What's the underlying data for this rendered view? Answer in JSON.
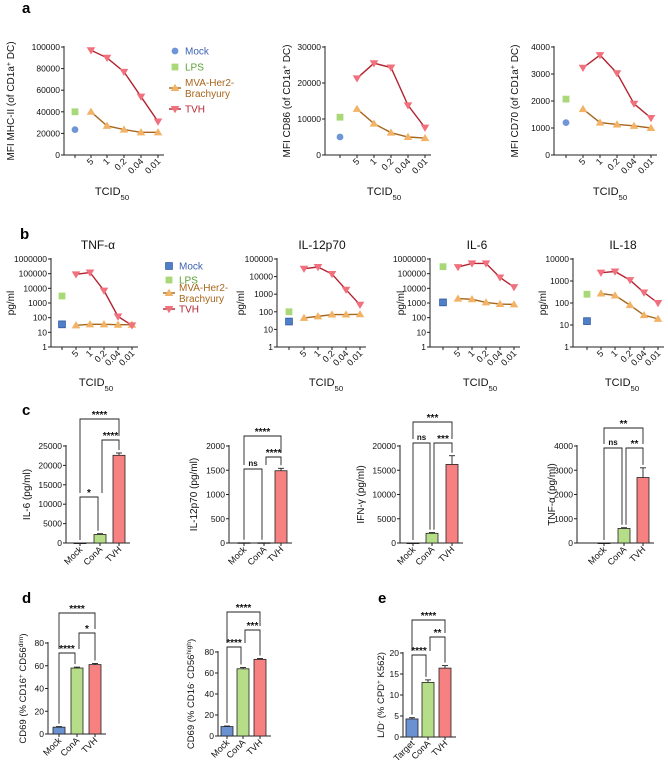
{
  "figure": {
    "panel_labels": {
      "a": "a",
      "b": "b",
      "c": "c",
      "d": "d",
      "e": "e"
    }
  },
  "colors": {
    "mock": "#6f95d6",
    "lps": "#a9d878",
    "mva_fill": "#f2b366",
    "mva_line": "#a8661c",
    "tvh_fill": "#f0707e",
    "tvh_line": "#b3222f",
    "bar_mock": "#6a92d2",
    "bar_cona": "#b6de88",
    "bar_tvh": "#f78080"
  },
  "legend_a": [
    {
      "label": [
        "Mock"
      ],
      "marker": "circle",
      "color": "#6f95d6",
      "text_color": "#3b62b0"
    },
    {
      "label": [
        "LPS"
      ],
      "marker": "square",
      "color": "#a9d878",
      "text_color": "#5aa032"
    },
    {
      "label": [
        "MVA-Her2-",
        "Brachyury"
      ],
      "marker": "tri-up",
      "color": "#f2b366",
      "line": "#a8661c",
      "text_color": "#a8661c"
    },
    {
      "label": [
        "TVH"
      ],
      "marker": "tri-down",
      "color": "#f0707e",
      "line": "#b3222f",
      "text_color": "#b3222f"
    }
  ],
  "legend_b": [
    {
      "label": [
        "Mock"
      ],
      "marker": "square",
      "color": "#4f7fc8",
      "text_color": "#3b62b0"
    },
    {
      "label": [
        "LPS"
      ],
      "marker": "square",
      "color": "#a9d878",
      "text_color": "#5aa032"
    },
    {
      "label": [
        "MVA-Her2-",
        "Brachyury"
      ],
      "marker": "tri-up",
      "color": "#f2b366",
      "line": "#a8661c",
      "text_color": "#a8661c"
    },
    {
      "label": [
        "TVH"
      ],
      "marker": "tri-down",
      "color": "#f0707e",
      "line": "#b3222f",
      "text_color": "#b3222f"
    }
  ],
  "chart_data": [
    {
      "id": "a1",
      "panel": "a",
      "type": "line",
      "scale": "linear",
      "title": "",
      "ylabel": [
        {
          "t": "MFI MHC-II (of CD1a"
        },
        {
          "t": "+",
          "sup": true
        },
        {
          "t": " DC)"
        }
      ],
      "xlabel": [
        {
          "t": "TCID"
        },
        {
          "t": "50",
          "sub": true
        }
      ],
      "x_ticks": [
        "5",
        "1",
        "0.2",
        "0.04",
        "0.01"
      ],
      "ylim": [
        0,
        100000
      ],
      "yticks": [
        "0",
        "20000",
        "40000",
        "60000",
        "80000",
        "100000"
      ],
      "controls": {
        "Mock": 23500,
        "LPS": 40000
      },
      "series": [
        {
          "name": "MVA-Her2-Brachyury",
          "values": [
            40000,
            27000,
            23500,
            21000,
            21000
          ]
        },
        {
          "name": "TVH",
          "values": [
            97000,
            90000,
            77000,
            54000,
            31000
          ]
        }
      ]
    },
    {
      "id": "a2",
      "panel": "a",
      "type": "line",
      "scale": "linear",
      "title": "",
      "ylabel": [
        {
          "t": "MFI CD86 (of CD1a"
        },
        {
          "t": "+",
          "sup": true
        },
        {
          "t": " DC)"
        }
      ],
      "xlabel": [
        {
          "t": "TCID"
        },
        {
          "t": "50",
          "sub": true
        }
      ],
      "x_ticks": [
        "5",
        "1",
        "0.2",
        "0.04",
        "0.01"
      ],
      "ylim": [
        0,
        30000
      ],
      "yticks": [
        "0",
        "10000",
        "20000",
        "30000"
      ],
      "controls": {
        "Mock": 5000,
        "LPS": 10500
      },
      "series": [
        {
          "name": "MVA-Her2-Brachyury",
          "values": [
            12800,
            8700,
            6200,
            5000,
            4700
          ]
        },
        {
          "name": "TVH",
          "values": [
            21300,
            25500,
            24300,
            13800,
            7600
          ]
        }
      ]
    },
    {
      "id": "a3",
      "panel": "a",
      "type": "line",
      "scale": "linear",
      "title": "",
      "ylabel": [
        {
          "t": "MFI CD70 (of CD1a"
        },
        {
          "t": "+",
          "sup": true
        },
        {
          "t": " DC)"
        }
      ],
      "xlabel": [
        {
          "t": "TCID"
        },
        {
          "t": "50",
          "sub": true
        }
      ],
      "x_ticks": [
        "5",
        "1",
        "0.2",
        "0.04",
        "0.01"
      ],
      "ylim": [
        0,
        4000
      ],
      "yticks": [
        "0",
        "1000",
        "2000",
        "3000",
        "4000"
      ],
      "controls": {
        "Mock": 1200,
        "LPS": 2070
      },
      "series": [
        {
          "name": "MVA-Her2-Brachyury",
          "values": [
            1700,
            1200,
            1130,
            1080,
            1000
          ]
        },
        {
          "name": "TVH",
          "values": [
            3230,
            3700,
            3030,
            1900,
            1370
          ]
        }
      ]
    },
    {
      "id": "b1",
      "panel": "b",
      "type": "line",
      "scale": "log",
      "title": "TNF-α",
      "ylabel": [
        {
          "t": "pg/ml"
        }
      ],
      "xlabel": [
        {
          "t": "TCID"
        },
        {
          "t": "50",
          "sub": true
        }
      ],
      "x_ticks": [
        "5",
        "1",
        "0.2",
        "0.04",
        "0.01"
      ],
      "ylim": [
        1,
        1000000
      ],
      "yticks": [
        "1",
        "10",
        "100",
        "1000",
        "10000",
        "100000",
        "1000000"
      ],
      "controls": {
        "Mock": 35,
        "LPS": 3000
      },
      "series": [
        {
          "name": "MVA-Her2-Brachyury",
          "values": [
            30,
            35,
            35,
            33,
            33
          ]
        },
        {
          "name": "TVH",
          "values": [
            90000,
            120000,
            7000,
            120,
            30
          ]
        }
      ]
    },
    {
      "id": "b2",
      "panel": "b",
      "type": "line",
      "scale": "log",
      "title": "IL-12p70",
      "ylabel": [
        {
          "t": "pg/ml"
        }
      ],
      "xlabel": [
        {
          "t": "TCID"
        },
        {
          "t": "50",
          "sub": true
        }
      ],
      "x_ticks": [
        "5",
        "1",
        "0.2",
        "0.04",
        "0.01"
      ],
      "ylim": [
        1,
        100000
      ],
      "yticks": [
        "1",
        "10",
        "100",
        "1000",
        "10000",
        "100000"
      ],
      "controls": {
        "Mock": 28,
        "LPS": 100
      },
      "series": [
        {
          "name": "MVA-Her2-Brachyury",
          "values": [
            45,
            55,
            70,
            70,
            72
          ]
        },
        {
          "name": "TVH",
          "values": [
            28000,
            35000,
            14000,
            1800,
            250
          ]
        }
      ]
    },
    {
      "id": "b3",
      "panel": "b",
      "type": "line",
      "scale": "log",
      "title": "IL-6",
      "ylabel": [
        {
          "t": "pg/ml"
        }
      ],
      "xlabel": [
        {
          "t": "TCID"
        },
        {
          "t": "50",
          "sub": true
        }
      ],
      "x_ticks": [
        "5",
        "1",
        "0.2",
        "0.04",
        "0.01"
      ],
      "ylim": [
        1,
        1000000
      ],
      "yticks": [
        "1",
        "10",
        "100",
        "1000",
        "10000",
        "100000",
        "1000000"
      ],
      "controls": {
        "Mock": 1100,
        "LPS": 300000
      },
      "series": [
        {
          "name": "MVA-Her2-Brachyury",
          "values": [
            2000,
            1800,
            1100,
            850,
            800
          ]
        },
        {
          "name": "TVH",
          "values": [
            280000,
            500000,
            500000,
            55000,
            12000
          ]
        }
      ]
    },
    {
      "id": "b4",
      "panel": "b",
      "type": "line",
      "scale": "log",
      "title": "IL-18",
      "ylabel": [
        {
          "t": "pg/ml"
        }
      ],
      "xlabel": [
        {
          "t": "TCID"
        },
        {
          "t": "50",
          "sub": true
        }
      ],
      "x_ticks": [
        "5",
        "1",
        "0.2",
        "0.04",
        "0.01"
      ],
      "ylim": [
        1,
        10000
      ],
      "yticks": [
        "1",
        "10",
        "100",
        "1000",
        "10000"
      ],
      "controls": {
        "Mock": 15,
        "LPS": 250
      },
      "series": [
        {
          "name": "MVA-Her2-Brachyury",
          "values": [
            270,
            220,
            80,
            28,
            19
          ]
        },
        {
          "name": "TVH",
          "values": [
            2400,
            2700,
            1100,
            300,
            100
          ]
        }
      ]
    },
    {
      "id": "c1",
      "panel": "c",
      "type": "bar",
      "ylabel": [
        {
          "t": "IL-6 (pg/ml)"
        }
      ],
      "categories": [
        "Mock",
        "ConA",
        "TVH"
      ],
      "values": [
        0,
        2200,
        22600
      ],
      "errors": [
        0,
        200,
        600
      ],
      "ylim": [
        0,
        25000
      ],
      "yticks": [
        "0",
        "5000",
        "10000",
        "15000",
        "20000",
        "25000"
      ],
      "significance": [
        "*",
        "****",
        "****"
      ]
    },
    {
      "id": "c2",
      "panel": "c",
      "type": "bar",
      "ylabel": [
        {
          "t": "IL-12p70 (pg/ml)"
        }
      ],
      "categories": [
        "Mock",
        "ConA",
        "TVH"
      ],
      "values": [
        5,
        5,
        1490
      ],
      "errors": [
        0,
        0,
        50
      ],
      "ylim": [
        0,
        2000
      ],
      "yticks": [
        "0",
        "500",
        "1000",
        "1500",
        "2000"
      ],
      "significance": [
        "ns",
        "****",
        "****"
      ]
    },
    {
      "id": "c3",
      "panel": "c",
      "type": "bar",
      "ylabel": [
        {
          "t": "IFN-γ (pg/ml)"
        }
      ],
      "categories": [
        "Mock",
        "ConA",
        "TVH"
      ],
      "values": [
        0,
        2000,
        16200
      ],
      "errors": [
        0,
        150,
        1800
      ],
      "ylim": [
        0,
        20000
      ],
      "yticks": [
        "0",
        "5000",
        "10000",
        "15000",
        "20000"
      ],
      "significance": [
        "ns",
        "***",
        "***"
      ]
    },
    {
      "id": "c4",
      "panel": "c",
      "type": "bar",
      "ylabel": [
        {
          "t": "TNF-α (pg/ml)"
        }
      ],
      "categories": [
        "Mock",
        "ConA",
        "TVH"
      ],
      "values": [
        0,
        600,
        2700
      ],
      "errors": [
        0,
        30,
        400
      ],
      "ylim": [
        0,
        4000
      ],
      "yticks": [
        "0",
        "1000",
        "2000",
        "3000",
        "4000"
      ],
      "significance": [
        "ns",
        "**",
        "**"
      ]
    },
    {
      "id": "d1",
      "panel": "d",
      "type": "bar",
      "ylabel": [
        {
          "t": "CD69 (% CD16"
        },
        {
          "t": "+",
          "sup": true
        },
        {
          "t": " CD56"
        },
        {
          "t": "dim",
          "sup": true
        },
        {
          "t": ")"
        }
      ],
      "categories": [
        "Mock",
        "ConA",
        "TVH"
      ],
      "values": [
        6,
        58,
        61
      ],
      "errors": [
        0.5,
        0.8,
        1
      ],
      "ylim": [
        0,
        80
      ],
      "yticks": [
        "0",
        "20",
        "40",
        "60",
        "80"
      ],
      "significance": [
        "****",
        "*",
        "****"
      ]
    },
    {
      "id": "d2",
      "panel": "d",
      "type": "bar",
      "ylabel": [
        {
          "t": "CD69 (% CD16"
        },
        {
          "t": "-",
          "sup": true
        },
        {
          "t": " CD56"
        },
        {
          "t": "high",
          "sup": true
        },
        {
          "t": ")"
        }
      ],
      "categories": [
        "Mock",
        "ConA",
        "TVH"
      ],
      "values": [
        9,
        64,
        73
      ],
      "errors": [
        0.5,
        1.2,
        0.8
      ],
      "ylim": [
        0,
        80
      ],
      "yticks": [
        "0",
        "20",
        "40",
        "60",
        "80"
      ],
      "significance": [
        "****",
        "***",
        "****"
      ]
    },
    {
      "id": "e1",
      "panel": "e",
      "type": "bar",
      "ylabel": [
        {
          "t": "L/D"
        },
        {
          "t": "-",
          "sup": true
        },
        {
          "t": " (% CPD"
        },
        {
          "t": "+",
          "sup": true
        },
        {
          "t": " K562)"
        }
      ],
      "categories": [
        "Target",
        "ConA",
        "TVH"
      ],
      "values": [
        4.3,
        13,
        16.4
      ],
      "errors": [
        0.3,
        0.6,
        0.6
      ],
      "ylim": [
        0,
        20
      ],
      "yticks": [
        "0",
        "5",
        "10",
        "15",
        "20"
      ],
      "significance": [
        "****",
        "**",
        "****"
      ]
    }
  ]
}
